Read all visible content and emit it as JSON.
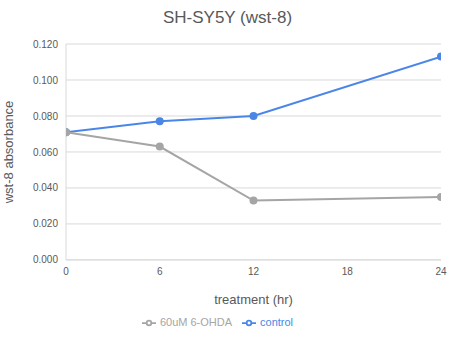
{
  "chart_data": {
    "type": "line",
    "title": "SH-SY5Y (wst-8)",
    "x_label": "treatment (hr)",
    "y_label": "wst-8 absorbance",
    "x": [
      0,
      6,
      12,
      24
    ],
    "series": [
      {
        "name": "control",
        "color": "#4a86e8",
        "marker": "circle",
        "values": [
          0.071,
          0.077,
          0.08,
          0.113
        ]
      },
      {
        "name": "60uM 6-OHDA",
        "color": "#a5a5a5",
        "marker": "circle",
        "values": [
          0.071,
          0.063,
          0.033,
          0.035
        ]
      }
    ],
    "xlim": [
      0,
      24
    ],
    "xticks": [
      0,
      6,
      12,
      18,
      24
    ],
    "ylim": [
      0,
      0.12
    ],
    "yticks": [
      {
        "value": 0,
        "label": "0.000"
      },
      {
        "value": 0.02,
        "label": "0.020"
      },
      {
        "value": 0.04,
        "label": "0.040"
      },
      {
        "value": 0.06,
        "label": "0.060"
      },
      {
        "value": 0.08,
        "label": "0.080"
      },
      {
        "value": 0.1,
        "label": "0.100"
      },
      {
        "value": 0.12,
        "label": "0.120"
      }
    ],
    "grid": true,
    "legend": "bottom"
  }
}
